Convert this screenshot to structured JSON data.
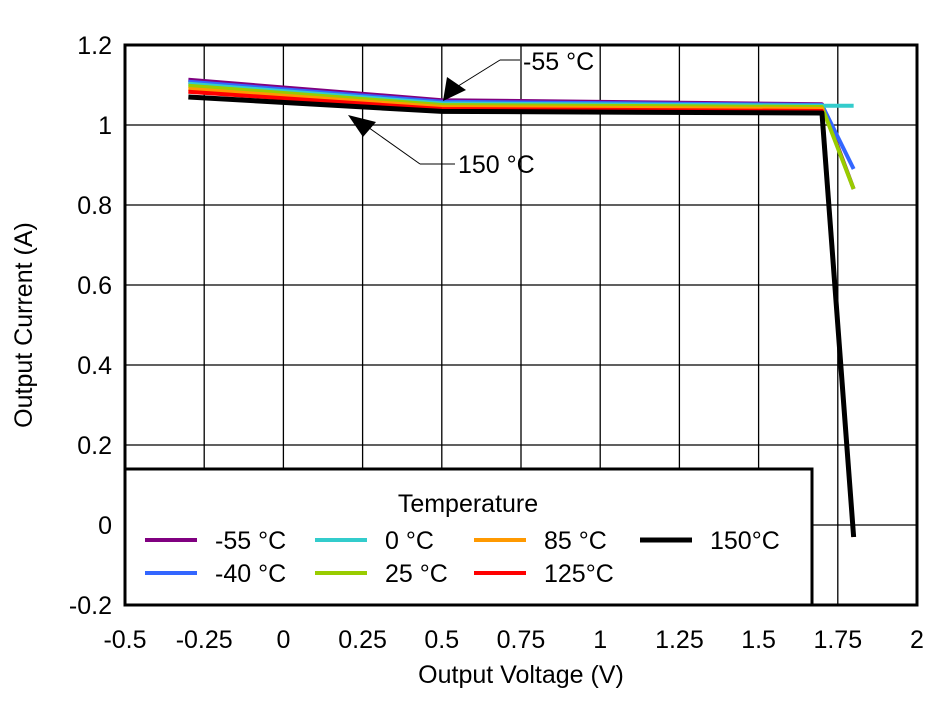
{
  "chart_data": {
    "type": "line",
    "title": "",
    "xlabel": "Output Voltage (V)",
    "ylabel": "Output Current (A)",
    "xlim": [
      -0.5,
      2
    ],
    "ylim": [
      -0.2,
      1.2
    ],
    "xticks": [
      -0.5,
      -0.25,
      0,
      0.25,
      0.5,
      0.75,
      1,
      1.25,
      1.5,
      1.75,
      2
    ],
    "xtick_labels": [
      "-0.5",
      "-0.25",
      "0",
      "0.25",
      "0.5",
      "0.75",
      "1",
      "1.25",
      "1.5",
      "1.75",
      "2"
    ],
    "yticks": [
      -0.2,
      0,
      0.2,
      0.4,
      0.6,
      0.8,
      1,
      1.2
    ],
    "ytick_labels": [
      "-0.2",
      "0",
      "0.2",
      "0.4",
      "0.6",
      "0.8",
      "1",
      "1.2"
    ],
    "grid": true,
    "legend": {
      "title": "Temperature",
      "placement": "bottom-left"
    },
    "series": [
      {
        "name": "-55 °C",
        "color": "#800080",
        "x": [
          -0.3,
          0.5,
          1.7,
          1.8
        ],
        "y": [
          1.113,
          1.062,
          1.052,
          0.84
        ]
      },
      {
        "name": "-40 °C",
        "color": "#3366ff",
        "x": [
          -0.3,
          0.5,
          1.7,
          1.8
        ],
        "y": [
          1.108,
          1.058,
          1.05,
          0.89
        ]
      },
      {
        "name": "0 °C",
        "color": "#33cccc",
        "x": [
          -0.3,
          0.5,
          1.7,
          1.8
        ],
        "y": [
          1.103,
          1.054,
          1.048,
          1.048
        ]
      },
      {
        "name": "25 °C",
        "color": "#99cc00",
        "x": [
          -0.3,
          0.5,
          1.7,
          1.8
        ],
        "y": [
          1.098,
          1.05,
          1.045,
          0.84
        ]
      },
      {
        "name": "85 °C",
        "color": "#ff9900",
        "x": [
          -0.3,
          0.5,
          1.7,
          1.8
        ],
        "y": [
          1.09,
          1.045,
          1.04,
          -0.03
        ]
      },
      {
        "name": "125°C",
        "color": "#ff0000",
        "x": [
          -0.3,
          0.5,
          1.7,
          1.8
        ],
        "y": [
          1.083,
          1.04,
          1.035,
          -0.03
        ]
      },
      {
        "name": "150°C",
        "color": "#000000",
        "x": [
          -0.3,
          0.5,
          1.7,
          1.8
        ],
        "y": [
          1.07,
          1.034,
          1.03,
          -0.03
        ]
      }
    ],
    "annotations": [
      {
        "text": "-55 °C",
        "x": 0.5,
        "y": 1.062
      },
      {
        "text": "150 °C",
        "x": 0.0,
        "y": 1.055
      }
    ]
  }
}
